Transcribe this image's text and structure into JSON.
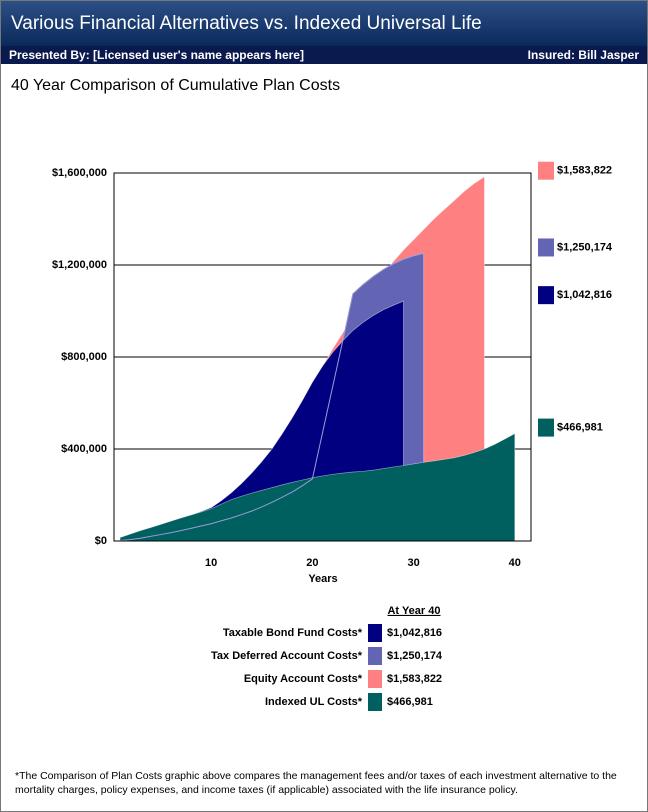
{
  "header": {
    "title": "Various Financial Alternatives vs. Indexed Universal Life",
    "presented_by": "Presented By: [Licensed user's name appears here]",
    "insured": "Insured: Bill Jasper"
  },
  "chart_data": {
    "type": "area",
    "title": "40 Year Comparison of Cumulative Plan Costs",
    "x_label": "Years",
    "x": [
      1,
      2,
      3,
      4,
      5,
      6,
      7,
      8,
      9,
      10,
      11,
      12,
      13,
      14,
      15,
      16,
      17,
      18,
      19,
      20,
      21,
      22,
      23,
      24,
      25,
      26,
      27,
      28,
      29,
      30,
      31,
      32,
      33,
      34,
      35,
      36,
      37,
      38,
      39,
      40
    ],
    "xlim": [
      0.4,
      41.6
    ],
    "xticks": [
      10,
      20,
      30,
      40
    ],
    "ylim": [
      0,
      1600000
    ],
    "yticks": [
      {
        "value": 0,
        "label": "$0"
      },
      {
        "value": 400000,
        "label": "$400,000"
      },
      {
        "value": 800000,
        "label": "$800,000"
      },
      {
        "value": 1200000,
        "label": "$1,200,000"
      },
      {
        "value": 1600000,
        "label": "$1,600,000"
      }
    ],
    "grid": true,
    "legend_title": "At Year 40",
    "series": [
      {
        "name": "Equity Account Costs*",
        "color": "#ff8080",
        "end_label": "$1,583,822",
        "values": [
          3000,
          10000,
          22000,
          38000,
          55000,
          72000,
          90000,
          108000,
          125000,
          143000,
          170000,
          205000,
          245000,
          290000,
          340000,
          395000,
          460000,
          530000,
          605000,
          685000,
          760000,
          835000,
          905000,
          970000,
          1035000,
          1100000,
          1160000,
          1215000,
          1265000,
          1310000,
          1355000,
          1400000,
          1440000,
          1480000,
          1520000,
          1555000,
          1583822,
          null,
          null,
          null
        ]
      },
      {
        "name": "Tax Deferred Account Costs*",
        "color": "#6464b4",
        "end_label": "$1,250,174",
        "values": [
          2000,
          6000,
          12000,
          20000,
          28000,
          36000,
          45000,
          55000,
          65000,
          75000,
          88000,
          100000,
          115000,
          130000,
          148000,
          168000,
          190000,
          213000,
          240000,
          270000,
          470000,
          670000,
          870000,
          1075000,
          1115000,
          1150000,
          1180000,
          1205000,
          1225000,
          1240000,
          1250174,
          null,
          null,
          null,
          null,
          null,
          null,
          null,
          null,
          null
        ]
      },
      {
        "name": "Taxable  Bond Fund Costs*",
        "color": "#000080",
        "end_label": "$1,042,816",
        "values": [
          5000,
          15000,
          30000,
          45000,
          60000,
          78000,
          95000,
          112000,
          128000,
          145000,
          175000,
          210000,
          250000,
          295000,
          345000,
          400000,
          465000,
          535000,
          610000,
          690000,
          760000,
          820000,
          870000,
          915000,
          950000,
          980000,
          1005000,
          1025000,
          1042816,
          null,
          null,
          null,
          null,
          null,
          null,
          null,
          null,
          null,
          null,
          null
        ]
      },
      {
        "name": "Indexed UL Costs*",
        "color": "#006060",
        "end_label": "$466,981",
        "values": [
          15000,
          30000,
          45000,
          58000,
          72000,
          86000,
          100000,
          113000,
          126000,
          140000,
          160000,
          180000,
          195000,
          208000,
          220000,
          232000,
          244000,
          255000,
          265000,
          275000,
          283000,
          290000,
          295000,
          300000,
          303000,
          308000,
          315000,
          322000,
          328000,
          335000,
          342000,
          348000,
          355000,
          362000,
          372000,
          385000,
          400000,
          420000,
          443000,
          466981
        ]
      }
    ],
    "legend_order": [
      2,
      1,
      0,
      3
    ]
  },
  "footnote": "*The Comparison of Plan Costs graphic above compares the management fees and/or taxes of each investment alternative to the mortality charges, policy expenses, and income taxes (if applicable) associated with the life insurance policy."
}
